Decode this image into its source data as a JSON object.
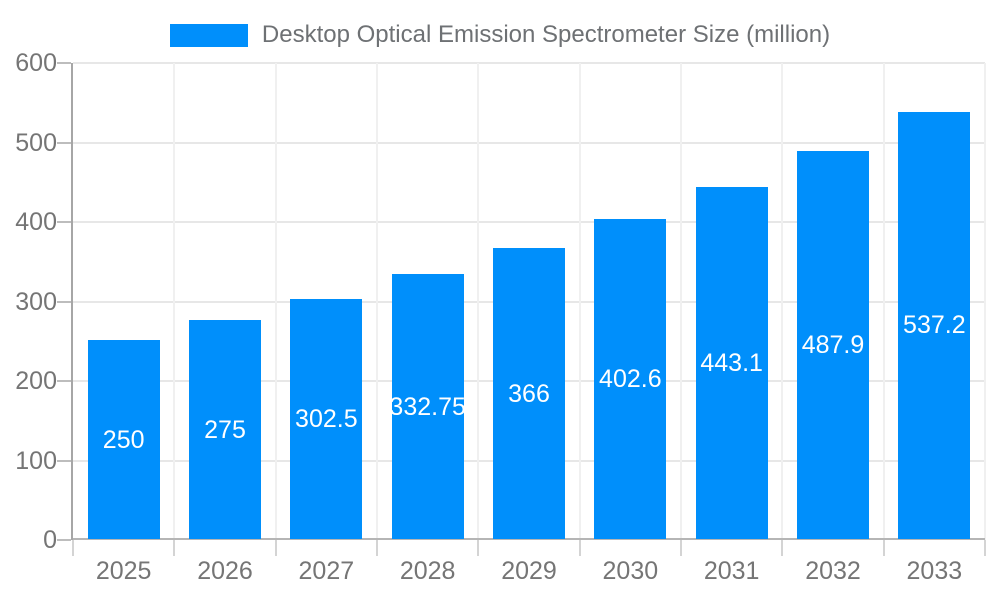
{
  "chart_data": {
    "type": "bar",
    "series_name": "Desktop Optical Emission Spectrometer Size (million)",
    "categories": [
      "2025",
      "2026",
      "2027",
      "2028",
      "2029",
      "2030",
      "2031",
      "2032",
      "2033"
    ],
    "values": [
      250,
      275,
      302.5,
      332.75,
      366,
      402.6,
      443.1,
      487.9,
      537.2
    ],
    "value_labels": [
      "250",
      "275",
      "302.5",
      "332.75",
      "366",
      "402.6",
      "443.1",
      "487.9",
      "537.2"
    ],
    "y_ticks": [
      0,
      100,
      200,
      300,
      400,
      500,
      600
    ],
    "ylim": [
      0,
      600
    ],
    "grid": true,
    "legend_position": "top",
    "bar_color": "#008FFB",
    "value_label_color": "#ffffff",
    "axis_label_color": "#757575"
  }
}
